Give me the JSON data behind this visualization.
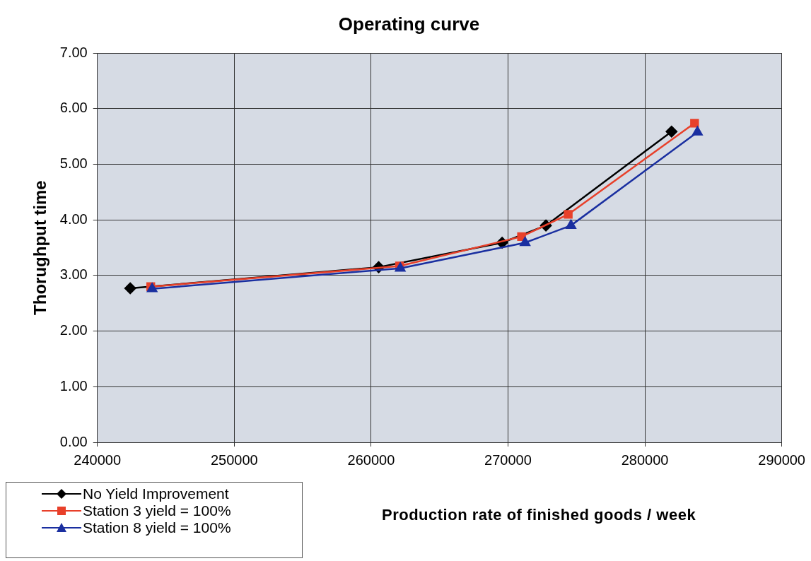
{
  "chart_data": {
    "type": "line",
    "title": "Operating curve",
    "xlabel": "Production rate of finished goods  / week",
    "ylabel": "Thorughput time",
    "xlim": [
      240000,
      290000
    ],
    "xticks": [
      240000,
      250000,
      260000,
      270000,
      280000,
      290000
    ],
    "ylim": [
      0,
      7
    ],
    "yticks": [
      {
        "value": 0,
        "label": "0.00"
      },
      {
        "value": 1,
        "label": "1.00"
      },
      {
        "value": 2,
        "label": "2.00"
      },
      {
        "value": 3,
        "label": "3.00"
      },
      {
        "value": 4,
        "label": "4.00"
      },
      {
        "value": 5,
        "label": "5.00"
      },
      {
        "value": 6,
        "label": "6.00"
      },
      {
        "value": 7,
        "label": "7.00"
      }
    ],
    "grid": true,
    "legend": "bottom left",
    "line_style": "solid",
    "series": [
      {
        "name": "No Yield Improvement",
        "color": "#000000",
        "marker": "diamond",
        "x": [
          242400,
          260550,
          269570,
          272770,
          281950
        ],
        "values": [
          2.77,
          3.15,
          3.59,
          3.9,
          5.59
        ]
      },
      {
        "name": "Station 3 yield = 100%",
        "color": "#e8402a",
        "marker": "square",
        "x": [
          243900,
          262080,
          270990,
          274400,
          283630
        ],
        "values": [
          2.8,
          3.17,
          3.7,
          4.1,
          5.74
        ]
      },
      {
        "name": "Station 8 yield = 100%",
        "color": "#1a2fa0",
        "marker": "triangle",
        "x": [
          244000,
          262130,
          271250,
          274600,
          283840
        ],
        "values": [
          2.76,
          3.13,
          3.59,
          3.9,
          5.58
        ]
      }
    ]
  }
}
